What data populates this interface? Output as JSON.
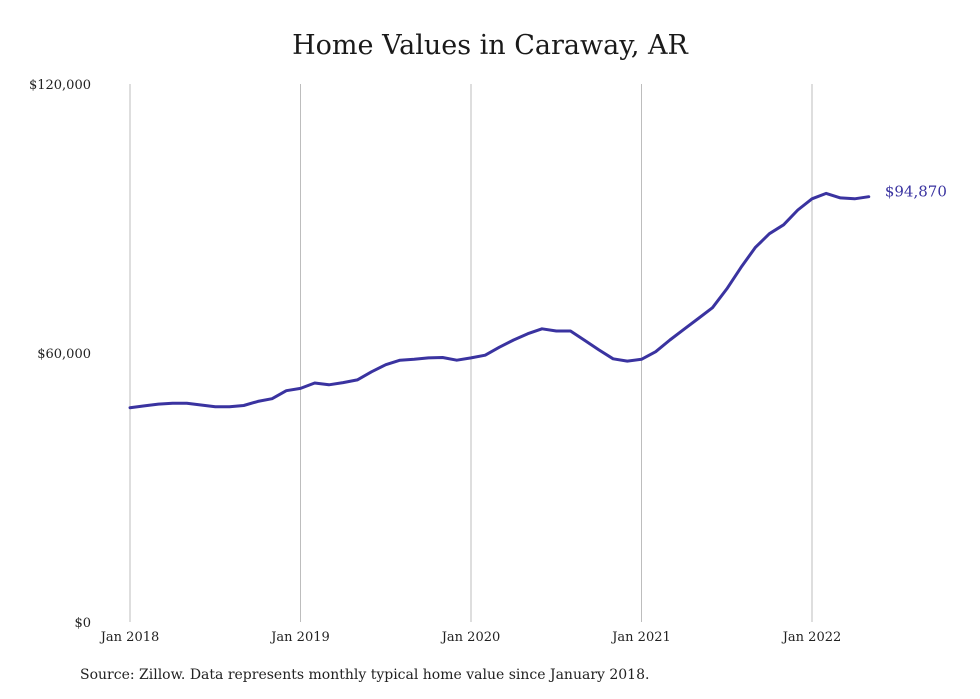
{
  "title": "Home Values in Caraway, AR",
  "source": "Source: Zillow. Data represents monthly typical home value since January 2018.",
  "colors": {
    "line": "#3a33a0",
    "grid": "#bdbdbd",
    "end_label": "#3a33a0"
  },
  "chart_data": {
    "type": "line",
    "title": "Home Values in Caraway, AR",
    "xlabel": "",
    "ylabel": "",
    "ylim": [
      0,
      120000
    ],
    "y_ticks": [
      0,
      60000,
      120000
    ],
    "y_tick_labels": [
      "$0",
      "$60,000",
      "$120,000"
    ],
    "x_ticks": [
      "2018-01",
      "2019-01",
      "2020-01",
      "2021-01",
      "2022-01"
    ],
    "x_tick_labels": [
      "Jan 2018",
      "Jan 2019",
      "Jan 2020",
      "Jan 2021",
      "Jan 2022"
    ],
    "grid": "vertical",
    "legend": "none",
    "end_label": "$94,870",
    "x": [
      "2018-01",
      "2018-02",
      "2018-03",
      "2018-04",
      "2018-05",
      "2018-06",
      "2018-07",
      "2018-08",
      "2018-09",
      "2018-10",
      "2018-11",
      "2018-12",
      "2019-01",
      "2019-02",
      "2019-03",
      "2019-04",
      "2019-05",
      "2019-06",
      "2019-07",
      "2019-08",
      "2019-09",
      "2019-10",
      "2019-11",
      "2019-12",
      "2020-01",
      "2020-02",
      "2020-03",
      "2020-04",
      "2020-05",
      "2020-06",
      "2020-07",
      "2020-08",
      "2020-09",
      "2020-10",
      "2020-11",
      "2020-12",
      "2021-01",
      "2021-02",
      "2021-03",
      "2021-04",
      "2021-05",
      "2021-06",
      "2021-07",
      "2021-08",
      "2021-09",
      "2021-10",
      "2021-11",
      "2021-12",
      "2022-01",
      "2022-02",
      "2022-03",
      "2022-04",
      "2022-05"
    ],
    "series": [
      {
        "values": [
          47800,
          48200,
          48600,
          48800,
          48800,
          48400,
          48000,
          48000,
          48300,
          49200,
          49800,
          51600,
          52100,
          53300,
          52900,
          53400,
          54000,
          55800,
          57400,
          58400,
          58600,
          58900,
          59000,
          58400,
          58900,
          59500,
          61300,
          62900,
          64300,
          65400,
          64900,
          64900,
          62800,
          60700,
          58700,
          58200,
          58600,
          60300,
          62900,
          65300,
          67700,
          70100,
          74300,
          79100,
          83500,
          86600,
          88600,
          91900,
          94400,
          95600,
          94600,
          94400,
          94870
        ]
      }
    ]
  }
}
